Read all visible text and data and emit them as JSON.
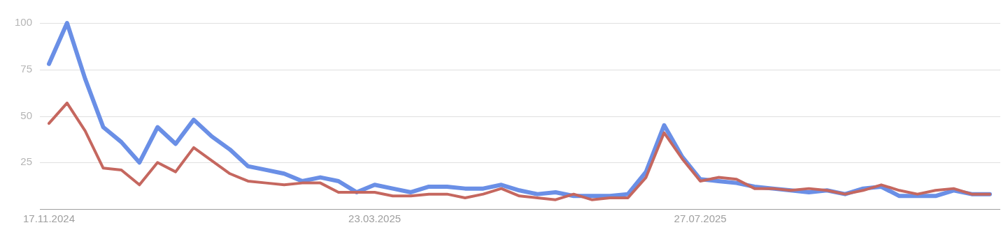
{
  "chart_data": {
    "type": "line",
    "categories": [
      "17.11.2024",
      null,
      null,
      null,
      null,
      null,
      null,
      null,
      null,
      null,
      null,
      null,
      null,
      null,
      null,
      null,
      null,
      null,
      "23.03.2025",
      null,
      null,
      null,
      null,
      null,
      null,
      null,
      null,
      null,
      null,
      null,
      null,
      null,
      null,
      null,
      null,
      null,
      "27.07.2025",
      null,
      null,
      null,
      null,
      null,
      null,
      null,
      null,
      null,
      null,
      null,
      null,
      null,
      null,
      null,
      null
    ],
    "series": [
      {
        "color": "#6a8fe6",
        "values": [
          78,
          100,
          70,
          44,
          36,
          25,
          44,
          35,
          48,
          39,
          32,
          23,
          21,
          19,
          15,
          17,
          15,
          9,
          13,
          11,
          9,
          12,
          12,
          11,
          11,
          13,
          10,
          8,
          9,
          7,
          7,
          7,
          8,
          20,
          45,
          28,
          16,
          15,
          14,
          12,
          11,
          10,
          9,
          10,
          8,
          11,
          12,
          7,
          7,
          7,
          10,
          8,
          8
        ]
      },
      {
        "color": "#c5675f",
        "values": [
          46,
          57,
          42,
          22,
          21,
          13,
          25,
          20,
          33,
          26,
          19,
          15,
          14,
          13,
          14,
          14,
          9,
          9,
          9,
          7,
          7,
          8,
          8,
          6,
          8,
          11,
          7,
          6,
          5,
          8,
          5,
          6,
          6,
          17,
          41,
          27,
          15,
          17,
          16,
          11,
          11,
          10,
          11,
          10,
          8,
          10,
          13,
          10,
          8,
          10,
          11,
          8,
          8
        ]
      }
    ],
    "ylim": [
      0,
      100
    ],
    "yticks": [
      {
        "value": 0,
        "label": null
      },
      25,
      50,
      75,
      100
    ],
    "grid": "y"
  }
}
